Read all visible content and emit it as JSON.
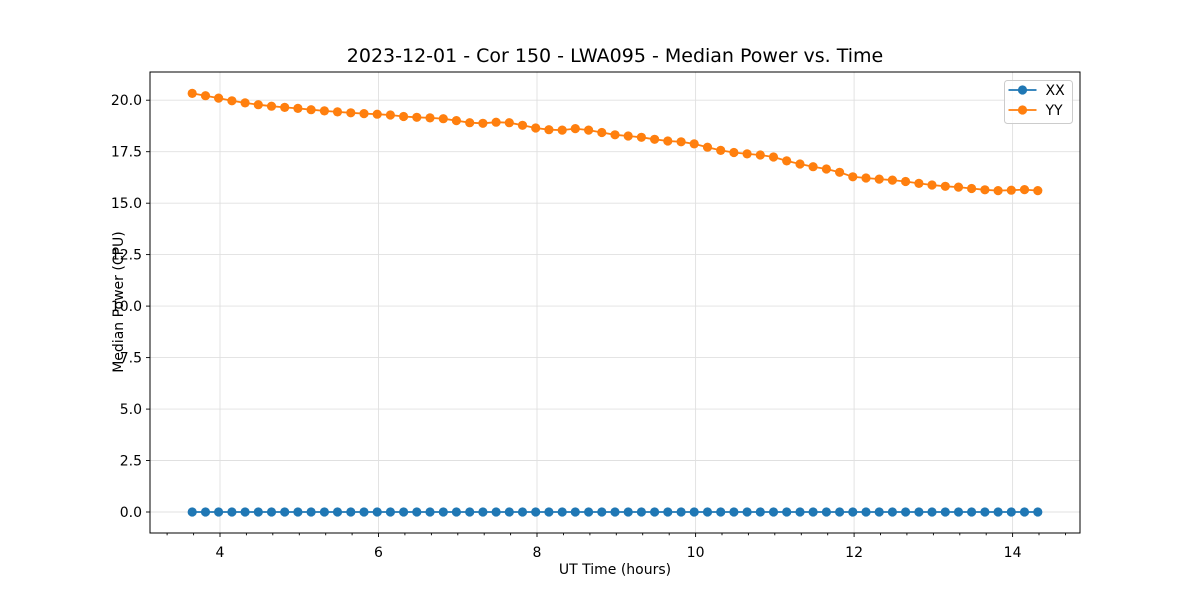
{
  "window": {
    "background": "#ffffff"
  },
  "chart_data": {
    "type": "line",
    "title": "2023-12-01 - Cor 150 - LWA095 - Median Power vs. Time",
    "xlabel": "UT Time (hours)",
    "ylabel": "Median Power (CPU)",
    "xlim": [
      3.117,
      14.85
    ],
    "ylim": [
      -1.02,
      21.37
    ],
    "grid": "major",
    "grid_color": "#e0e0e0",
    "spine_color": "#000000",
    "x_major_ticks": [
      4,
      6,
      8,
      10,
      12,
      14
    ],
    "x_tick_labels": [
      "4",
      "6",
      "8",
      "10",
      "12",
      "14"
    ],
    "x_minor_divisions": 6,
    "y_major_ticks": [
      0,
      2.5,
      5,
      7.5,
      10,
      12.5,
      15,
      17.5,
      20
    ],
    "y_tick_labels": [
      "0.0",
      "2.5",
      "5.0",
      "7.5",
      "10.0",
      "12.5",
      "15.0",
      "17.5",
      "20.0"
    ],
    "legend": {
      "position": "upper right",
      "frame": true,
      "entries": [
        "XX",
        "YY"
      ]
    },
    "x": [
      3.65,
      3.817,
      3.983,
      4.15,
      4.317,
      4.483,
      4.65,
      4.817,
      4.983,
      5.15,
      5.317,
      5.483,
      5.65,
      5.817,
      5.983,
      6.15,
      6.317,
      6.483,
      6.65,
      6.817,
      6.983,
      7.15,
      7.317,
      7.483,
      7.65,
      7.817,
      7.983,
      8.15,
      8.317,
      8.483,
      8.65,
      8.817,
      8.983,
      9.15,
      9.317,
      9.483,
      9.65,
      9.817,
      9.983,
      10.15,
      10.317,
      10.483,
      10.65,
      10.817,
      10.983,
      11.15,
      11.317,
      11.483,
      11.65,
      11.817,
      11.983,
      12.15,
      12.317,
      12.483,
      12.65,
      12.817,
      12.983,
      13.15,
      13.317,
      13.483,
      13.65,
      13.817,
      13.983,
      14.15,
      14.317
    ],
    "series": [
      {
        "name": "XX",
        "color": "#1f77b4",
        "values": [
          0.0,
          0.0,
          0.0,
          0.0,
          0.0,
          0.0,
          0.0,
          0.0,
          0.0,
          0.0,
          0.0,
          0.0,
          0.0,
          0.0,
          0.0,
          0.0,
          0.0,
          0.0,
          0.0,
          0.0,
          0.0,
          0.0,
          0.0,
          0.0,
          0.0,
          0.0,
          0.0,
          0.0,
          0.0,
          0.0,
          0.0,
          0.0,
          0.0,
          0.0,
          0.0,
          0.0,
          0.0,
          0.0,
          0.0,
          0.0,
          0.0,
          0.0,
          0.0,
          0.0,
          0.0,
          0.0,
          0.0,
          0.0,
          0.0,
          0.0,
          0.0,
          0.0,
          0.0,
          0.0,
          0.0,
          0.0,
          0.0,
          0.0,
          0.0,
          0.0,
          0.0,
          0.0,
          0.0,
          0.0,
          0.0
        ]
      },
      {
        "name": "YY",
        "color": "#ff7f0e",
        "values": [
          20.33,
          20.22,
          20.1,
          19.97,
          19.87,
          19.78,
          19.71,
          19.65,
          19.6,
          19.54,
          19.48,
          19.43,
          19.39,
          19.35,
          19.32,
          19.28,
          19.21,
          19.17,
          19.14,
          19.1,
          19.01,
          18.91,
          18.88,
          18.93,
          18.91,
          18.78,
          18.65,
          18.57,
          18.55,
          18.62,
          18.55,
          18.43,
          18.32,
          18.26,
          18.2,
          18.1,
          18.02,
          17.98,
          17.88,
          17.72,
          17.56,
          17.46,
          17.39,
          17.34,
          17.24,
          17.05,
          16.9,
          16.77,
          16.66,
          16.5,
          16.28,
          16.22,
          16.17,
          16.12,
          16.05,
          15.96,
          15.88,
          15.82,
          15.78,
          15.71,
          15.65,
          15.61,
          15.63,
          15.66,
          15.61
        ]
      }
    ]
  }
}
